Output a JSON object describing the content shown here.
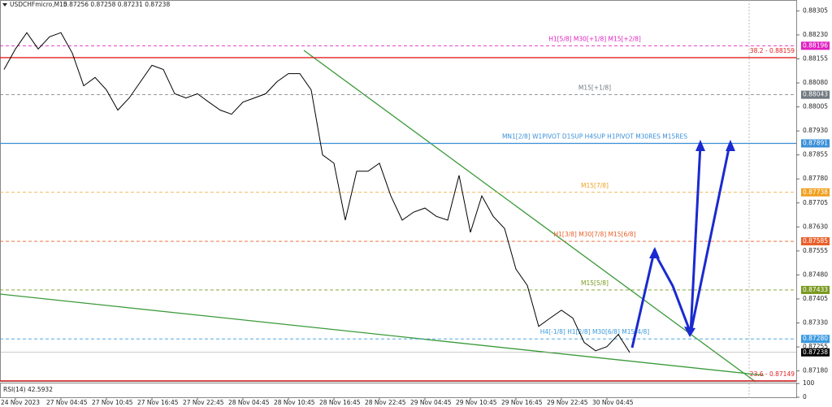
{
  "chart_data": {
    "type": "line",
    "symbol": "USDCHFmicro,M15",
    "ohlc": "0.87256 0.87258 0.87231 0.87238",
    "categories": [
      null,
      "24 Nov 2023",
      null,
      null,
      null,
      "27 Nov 04:45",
      null,
      null,
      null,
      "27 Nov 10:45",
      null,
      null,
      null,
      "27 Nov 16:45",
      null,
      null,
      null,
      "27 Nov 22:45",
      null,
      null,
      null,
      "28 Nov 04:45",
      null,
      null,
      null,
      "28 Nov 10:45",
      null,
      null,
      null,
      "28 Nov 16:45",
      null,
      null,
      null,
      "28 Nov 22:45",
      null,
      null,
      null,
      "29 Nov 04:45",
      null,
      null,
      null,
      "29 Nov 10:45",
      null,
      null,
      null,
      "29 Nov 16:45",
      null,
      null,
      null,
      "29 Nov 22:45",
      null,
      null,
      null,
      "30 Nov 04:45",
      null,
      null,
      null,
      null,
      null,
      null,
      null,
      null,
      null,
      null,
      null,
      null,
      null,
      null,
      null,
      null
    ],
    "series": [
      {
        "name": "USDCHFmicro",
        "color": "#000000",
        "values": [
          0.88122,
          0.88186,
          0.88237,
          0.88186,
          0.88224,
          0.88237,
          0.88173,
          0.88071,
          0.88097,
          0.88058,
          0.87995,
          0.88033,
          0.88084,
          0.88135,
          0.88122,
          0.88046,
          0.88033,
          0.88046,
          0.8802,
          0.87995,
          0.87982,
          0.8802,
          0.88033,
          0.88046,
          0.88084,
          0.88109,
          0.88109,
          0.88058,
          0.87855,
          0.87829,
          0.87651,
          0.87804,
          0.87804,
          0.87829,
          0.87727,
          0.87651,
          0.87676,
          0.87689,
          0.87663,
          0.87651,
          0.87791,
          0.87613,
          0.87727,
          0.87663,
          0.87625,
          0.87498,
          0.87447,
          0.87319,
          0.87345,
          0.8737,
          0.87345,
          0.87269,
          0.87243,
          0.87256,
          0.87294,
          0.87238,
          null,
          null,
          null,
          null,
          null,
          null,
          null,
          null,
          null,
          null,
          null,
          null,
          null,
          null
        ]
      }
    ],
    "ylim": [
      0.87146,
      0.88339
    ],
    "yticks": [
      {
        "value": 0.88305,
        "label": "0.88305"
      },
      {
        "value": 0.8823,
        "label": "0.88230"
      },
      {
        "value": 0.88155,
        "label": "0.88155"
      },
      {
        "value": 0.8808,
        "label": "0.88080"
      },
      {
        "value": 0.88005,
        "label": "0.88005"
      },
      {
        "value": 0.8793,
        "label": "0.87930"
      },
      {
        "value": 0.87855,
        "label": "0.87855"
      },
      {
        "value": 0.8778,
        "label": "0.87780"
      },
      {
        "value": 0.87705,
        "label": "0.87705"
      },
      {
        "value": 0.8763,
        "label": "0.87630"
      },
      {
        "value": 0.87555,
        "label": "0.87555"
      },
      {
        "value": 0.8748,
        "label": "0.87480"
      },
      {
        "value": 0.87405,
        "label": "0.87405"
      },
      {
        "value": 0.8733,
        "label": "0.87330"
      },
      {
        "value": 0.87255,
        "label": "0.87255"
      },
      {
        "value": 0.8718,
        "label": "0.87180"
      }
    ],
    "levels": [
      {
        "name": "H1[5/8] M30[+1/8] M15[+2/8]",
        "value": 0.88196,
        "value_label": "0.88196",
        "color": "#e020c0",
        "dash": true
      },
      {
        "name": "38.2 - 0.88159",
        "value": 0.88159,
        "color": "#e02020",
        "dash": false
      },
      {
        "name": "M15[+1/8]",
        "value": 0.88043,
        "value_label": "0.88043",
        "color": "#707880",
        "dash": true
      },
      {
        "name": "MN1[2/8] W1PIVOT D1SUP H4SUP H1PIVOT M30RES M15RES",
        "value": 0.87891,
        "value_label": "0.87891",
        "color": "#3a8fd8",
        "dash": false
      },
      {
        "name": "M15[7/8]",
        "value": 0.87738,
        "value_label": "0.87738",
        "color": "#f0a020",
        "dash": true
      },
      {
        "name": "H1[3/8] M30[7/8] M15[6/8]",
        "value": 0.87585,
        "value_label": "0.87585",
        "color": "#e8602a",
        "dash": true
      },
      {
        "name": "M15[5/8]",
        "value": 0.87433,
        "value_label": "0.87433",
        "color": "#7a9a20",
        "dash": true
      },
      {
        "name": "H4[-1/8] H1[2/8] M30[6/8] M15[4/8]",
        "value": 0.8728,
        "value_label": "0.87280",
        "color": "#3a9ae0",
        "dash": true
      },
      {
        "name": "23.6 - 0.87149",
        "value": 0.87149,
        "color": "#e02020",
        "dash": false
      }
    ],
    "current": {
      "value": 0.87238,
      "value_label": "0.87238",
      "color": "#000000"
    },
    "rsi": {
      "label": "RSI(14) 42.5932",
      "ylim": [
        0,
        100
      ],
      "yticks": [
        0,
        100
      ]
    }
  }
}
